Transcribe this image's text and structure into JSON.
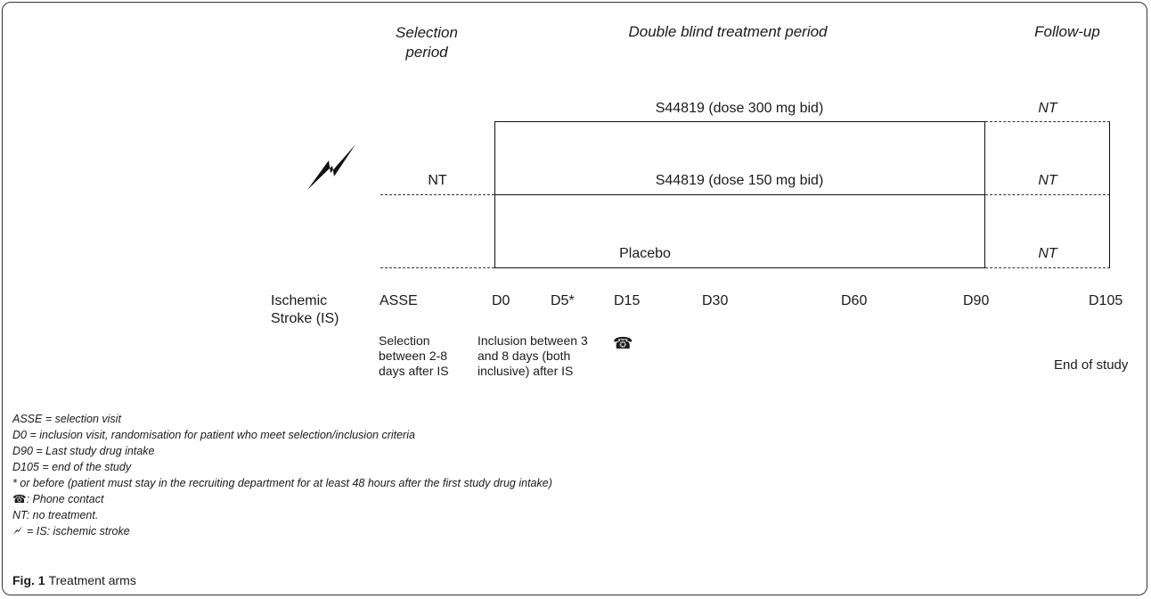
{
  "periods": {
    "selection": "Selection period",
    "treatment": "Double blind treatment period",
    "followup": "Follow-up"
  },
  "arms": {
    "high": "S44819 (dose 300 mg bid)",
    "low": "S44819 (dose 150 mg bid)",
    "placebo": "Placebo",
    "nt_selection": "NT",
    "nt_follow": "NT"
  },
  "timeline": {
    "event": "Ischemic Stroke (IS)",
    "labels": [
      "ASSE",
      "D0",
      "D5*",
      "D15",
      "D30",
      "D60",
      "D90",
      "D105"
    ]
  },
  "notes": {
    "selection": "Selection between 2-8 days after IS",
    "inclusion": "Inclusion between 3 and 8 days (both inclusive) after IS",
    "end": "End of study"
  },
  "legend": [
    "ASSE = selection visit",
    "D0 = inclusion visit, randomisation for patient who meet selection/inclusion criteria",
    "D90 = Last study drug intake",
    "D105 = end of the study",
    "* or before (patient must stay in the recruiting department for at least 48 hours after the first study drug intake)",
    ": Phone contact",
    "NT: no treatment.",
    "= IS: ischemic stroke"
  ],
  "caption": {
    "label": "Fig. 1",
    "text": "Treatment arms"
  },
  "icons": {
    "phone": "phone-icon",
    "stroke": "lightning-bolt-icon"
  }
}
